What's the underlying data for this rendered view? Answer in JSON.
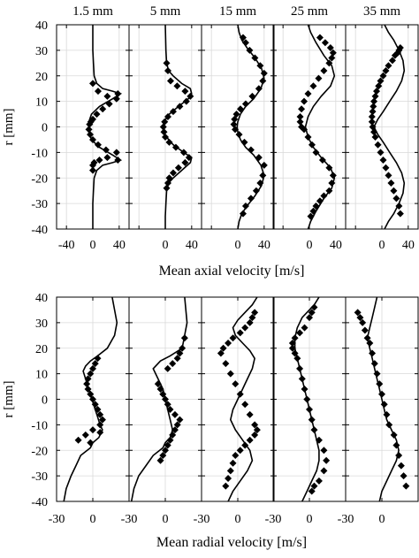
{
  "figure": {
    "column_titles": [
      "1.5 mm",
      "5 mm",
      "15 mm",
      "25 mm",
      "35 mm"
    ],
    "top_xlabel": "Mean axial velocity [m/s]",
    "bottom_xlabel": "Mean radial velocity [m/s]",
    "ylabel": "r [mm]",
    "yticks": [
      "40",
      "30",
      "20",
      "10",
      "0",
      "-10",
      "-20",
      "-30",
      "-40"
    ],
    "top_xticks": [
      "-40",
      "0",
      "40"
    ],
    "bottom_xticks": [
      "-30",
      "0",
      "-30",
      "0",
      "-30",
      "0",
      "-30",
      "0",
      "-30",
      "0"
    ]
  },
  "chart_data": [
    {
      "type": "line",
      "name": "Mean axial velocity",
      "xlim": [
        -55,
        55
      ],
      "ylim": [
        -40,
        40
      ],
      "grid": true,
      "marker_series": "symbols (diamond)",
      "line_series": "curve",
      "panels": [
        {
          "title": "1.5 mm",
          "x": [
            0,
            0,
            0,
            1,
            2,
            6,
            15,
            30,
            42,
            30,
            10,
            -2,
            -6,
            -6,
            -2,
            10,
            30,
            42,
            30,
            15,
            6,
            2,
            1,
            0,
            0,
            0
          ],
          "y": [
            -40,
            -35,
            -30,
            -25,
            -20,
            -17,
            -15,
            -14,
            -13,
            -11,
            -8,
            -5,
            -2,
            2,
            5,
            8,
            11,
            13,
            14,
            15,
            17,
            20,
            25,
            30,
            35,
            40
          ],
          "markers": {
            "x": [
              0,
              0,
              2,
              10,
              22,
              38,
              36,
              20,
              8,
              0,
              -4,
              -6,
              -5,
              -3,
              0,
              6,
              15,
              25,
              36,
              38,
              22,
              8,
              0
            ],
            "y": [
              -17,
              -15,
              -14,
              -13,
              -12,
              -13,
              -10,
              -9,
              -7,
              -5,
              -3,
              -1,
              1,
              2,
              3,
              5,
              7,
              9,
              11,
              13,
              12,
              14,
              17
            ]
          }
        },
        {
          "title": "5 mm",
          "x": [
            0,
            0,
            1,
            2,
            5,
            12,
            25,
            38,
            40,
            28,
            12,
            2,
            -3,
            -4,
            -2,
            6,
            20,
            35,
            40,
            38,
            25,
            12,
            5,
            2,
            1,
            0
          ],
          "y": [
            -40,
            -35,
            -30,
            -25,
            -22,
            -20,
            -17,
            -14,
            -12,
            -10,
            -7,
            -4,
            -2,
            0,
            2,
            5,
            8,
            11,
            13,
            15,
            17,
            20,
            22,
            25,
            30,
            40
          ],
          "markers": {
            "x": [
              2,
              4,
              6,
              12,
              20,
              30,
              36,
              28,
              16,
              6,
              0,
              -2,
              -3,
              -1,
              4,
              12,
              22,
              32,
              38,
              30,
              18,
              8,
              4,
              2
            ],
            "y": [
              -24,
              -22,
              -20,
              -18,
              -16,
              -14,
              -12,
              -10,
              -8,
              -6,
              -4,
              -2,
              0,
              2,
              4,
              6,
              8,
              10,
              12,
              14,
              16,
              18,
              22,
              25
            ]
          }
        },
        {
          "title": "15 mm",
          "x": [
            0,
            2,
            6,
            14,
            26,
            36,
            40,
            35,
            24,
            12,
            4,
            0,
            -1,
            0,
            4,
            12,
            24,
            35,
            40,
            36,
            26,
            14,
            6,
            2,
            0
          ],
          "y": [
            -40,
            -37,
            -34,
            -31,
            -27,
            -23,
            -19,
            -15,
            -11,
            -8,
            -5,
            -2,
            0,
            2,
            5,
            8,
            11,
            15,
            19,
            23,
            27,
            31,
            34,
            37,
            40
          ],
          "markers": {
            "x": [
              8,
              12,
              20,
              28,
              34,
              38,
              40,
              32,
              20,
              10,
              2,
              -4,
              -6,
              -5,
              -2,
              4,
              12,
              22,
              32,
              38,
              40,
              34,
              26,
              18,
              12,
              8
            ],
            "y": [
              -34,
              -31,
              -28,
              -25,
              -22,
              -19,
              -15,
              -12,
              -9,
              -6,
              -3,
              -1,
              1,
              3,
              5,
              7,
              9,
              12,
              15,
              18,
              21,
              24,
              27,
              30,
              33,
              35
            ]
          }
        },
        {
          "title": "25 mm",
          "x": [
            -2,
            2,
            10,
            22,
            34,
            38,
            32,
            18,
            6,
            -2,
            -5,
            -6,
            -5,
            -2,
            6,
            18,
            32,
            38,
            34,
            22,
            10,
            2,
            -2
          ],
          "y": [
            -40,
            -37,
            -33,
            -28,
            -24,
            -20,
            -16,
            -12,
            -8,
            -4,
            -1,
            0,
            1,
            4,
            8,
            12,
            16,
            20,
            24,
            28,
            33,
            37,
            40
          ],
          "markers": {
            "x": [
              2,
              6,
              10,
              16,
              22,
              30,
              34,
              36,
              30,
              20,
              10,
              4,
              -2,
              -8,
              -12,
              -14,
              -14,
              -12,
              -8,
              -2,
              6,
              14,
              22,
              30,
              34,
              36,
              32,
              24,
              16
            ],
            "y": [
              -35,
              -33,
              -31,
              -29,
              -27,
              -25,
              -22,
              -19,
              -16,
              -13,
              -10,
              -7,
              -4,
              -1,
              0,
              2,
              4,
              7,
              10,
              13,
              16,
              19,
              22,
              25,
              27,
              29,
              31,
              33,
              35
            ]
          }
        },
        {
          "title": "35 mm",
          "x": [
            4,
            10,
            18,
            26,
            32,
            34,
            30,
            22,
            12,
            2,
            -6,
            -10,
            -12,
            -10,
            -6,
            2,
            12,
            22,
            30,
            34,
            32,
            26,
            18,
            10,
            4
          ],
          "y": [
            -40,
            -37,
            -34,
            -30,
            -26,
            -22,
            -18,
            -14,
            -10,
            -6,
            -3,
            -1,
            0,
            1,
            3,
            6,
            10,
            14,
            18,
            22,
            26,
            30,
            34,
            37,
            40
          ],
          "markers": {
            "x": [
              28,
              26,
              22,
              18,
              14,
              10,
              6,
              2,
              -2,
              -6,
              -10,
              -12,
              -14,
              -15,
              -15,
              -14,
              -13,
              -12,
              -10,
              -8,
              -5,
              -2,
              2,
              6,
              10,
              16,
              20,
              24,
              26,
              28
            ],
            "y": [
              -34,
              -31,
              -28,
              -25,
              -22,
              -19,
              -16,
              -13,
              -10,
              -7,
              -4,
              -2,
              0,
              2,
              4,
              6,
              8,
              10,
              12,
              14,
              16,
              18,
              20,
              22,
              24,
              26,
              28,
              29,
              30,
              31
            ]
          }
        }
      ]
    },
    {
      "type": "line",
      "name": "Mean radial velocity",
      "xlim": [
        -30,
        30
      ],
      "ylim": [
        -40,
        40
      ],
      "grid": true,
      "marker_series": "symbols (diamond)",
      "line_series": "curve",
      "panels": [
        {
          "title": "1.5 mm",
          "x": [
            -24,
            -22,
            -18,
            -14,
            -10,
            -2,
            0,
            5,
            8,
            6,
            4,
            2,
            0,
            -2,
            -4,
            -6,
            -8,
            -6,
            -2,
            4,
            12,
            18,
            20,
            18,
            16
          ],
          "y": [
            -40,
            -35,
            -30,
            -26,
            -22,
            -19,
            -17,
            -15,
            -12,
            -10,
            -7,
            -4,
            -1,
            2,
            5,
            8,
            11,
            13,
            15,
            17,
            20,
            25,
            30,
            35,
            40
          ],
          "markers": {
            "x": [
              -12,
              -6,
              0,
              6,
              8,
              6,
              4,
              2,
              0,
              -2,
              -4,
              -5,
              -4,
              -2,
              0,
              2,
              4,
              6,
              -2
            ],
            "y": [
              -16,
              -14,
              -12,
              -10,
              -8,
              -6,
              -4,
              -2,
              0,
              2,
              4,
              6,
              8,
              10,
              12,
              14,
              16,
              -13,
              -17
            ]
          }
        },
        {
          "title": "5 mm",
          "x": [
            -28,
            -26,
            -22,
            -16,
            -10,
            -2,
            0,
            4,
            6,
            4,
            2,
            0,
            -2,
            -6,
            -10,
            -4,
            4,
            14,
            18,
            16
          ],
          "y": [
            -40,
            -35,
            -30,
            -26,
            -22,
            -19,
            -17,
            -15,
            -12,
            -8,
            -4,
            0,
            4,
            8,
            12,
            15,
            17,
            20,
            30,
            40
          ],
          "markers": {
            "x": [
              -4,
              -2,
              0,
              2,
              4,
              6,
              8,
              10,
              12,
              8,
              4,
              2,
              0,
              -2,
              -4,
              -6,
              2,
              6,
              10,
              12,
              14,
              16
            ],
            "y": [
              -24,
              -22,
              -20,
              -18,
              -16,
              -14,
              -12,
              -10,
              -8,
              -6,
              -4,
              -2,
              0,
              2,
              4,
              6,
              12,
              14,
              16,
              18,
              20,
              24
            ]
          }
        },
        {
          "title": "15 mm",
          "x": [
            -8,
            -4,
            2,
            8,
            12,
            10,
            4,
            -2,
            -6,
            -4,
            0,
            4,
            8,
            12,
            14,
            10,
            4,
            -2,
            -4,
            0,
            6,
            12,
            16
          ],
          "y": [
            -40,
            -36,
            -32,
            -28,
            -24,
            -20,
            -16,
            -12,
            -8,
            -4,
            0,
            4,
            8,
            12,
            16,
            19,
            22,
            25,
            28,
            31,
            34,
            37,
            40
          ],
          "markers": {
            "x": [
              -10,
              -8,
              -6,
              -4,
              -2,
              2,
              6,
              10,
              14,
              16,
              14,
              10,
              6,
              2,
              -2,
              -6,
              -10,
              -14,
              -12,
              -8,
              -4,
              2,
              6,
              10,
              12,
              14
            ],
            "y": [
              -34,
              -31,
              -28,
              -25,
              -22,
              -20,
              -18,
              -16,
              -14,
              -12,
              -10,
              -6,
              -2,
              2,
              6,
              10,
              14,
              18,
              20,
              22,
              24,
              26,
              28,
              30,
              32,
              34
            ]
          }
        },
        {
          "title": "25 mm",
          "x": [
            -6,
            -2,
            2,
            6,
            8,
            8,
            6,
            4,
            2,
            0,
            -2,
            -4,
            -6,
            -8,
            -10,
            -12,
            -12,
            -10,
            -6,
            -2,
            4,
            8
          ],
          "y": [
            -40,
            -36,
            -32,
            -28,
            -24,
            -20,
            -16,
            -12,
            -8,
            -4,
            0,
            4,
            8,
            12,
            16,
            20,
            24,
            28,
            32,
            34,
            37,
            40
          ],
          "markers": {
            "x": [
              2,
              4,
              8,
              12,
              14,
              12,
              8,
              4,
              2,
              0,
              -2,
              -4,
              -6,
              -8,
              -10,
              -12,
              -14,
              -14,
              -12,
              -8,
              -4,
              0,
              2,
              4
            ],
            "y": [
              -36,
              -34,
              -32,
              -28,
              -24,
              -20,
              -16,
              -12,
              -8,
              -4,
              0,
              4,
              8,
              12,
              16,
              18,
              20,
              22,
              24,
              26,
              28,
              32,
              34,
              36
            ]
          }
        },
        {
          "title": "35 mm",
          "x": [
            -2,
            0,
            4,
            8,
            12,
            14,
            12,
            8,
            4,
            2,
            0,
            -2,
            -4,
            -6,
            -8,
            -10,
            -12,
            -10,
            -8,
            -6,
            -4
          ],
          "y": [
            -40,
            -36,
            -32,
            -28,
            -24,
            -20,
            -16,
            -12,
            -8,
            -4,
            0,
            4,
            8,
            12,
            16,
            20,
            24,
            28,
            32,
            36,
            40
          ],
          "markers": {
            "x": [
              20,
              18,
              16,
              14,
              12,
              10,
              6,
              4,
              2,
              0,
              -2,
              -4,
              -6,
              -8,
              -10,
              -12,
              -14,
              -16,
              -18,
              -20
            ],
            "y": [
              -34,
              -30,
              -26,
              -22,
              -18,
              -14,
              -10,
              -6,
              -2,
              2,
              6,
              10,
              14,
              18,
              22,
              24,
              27,
              30,
              32,
              34
            ]
          }
        }
      ]
    }
  ]
}
